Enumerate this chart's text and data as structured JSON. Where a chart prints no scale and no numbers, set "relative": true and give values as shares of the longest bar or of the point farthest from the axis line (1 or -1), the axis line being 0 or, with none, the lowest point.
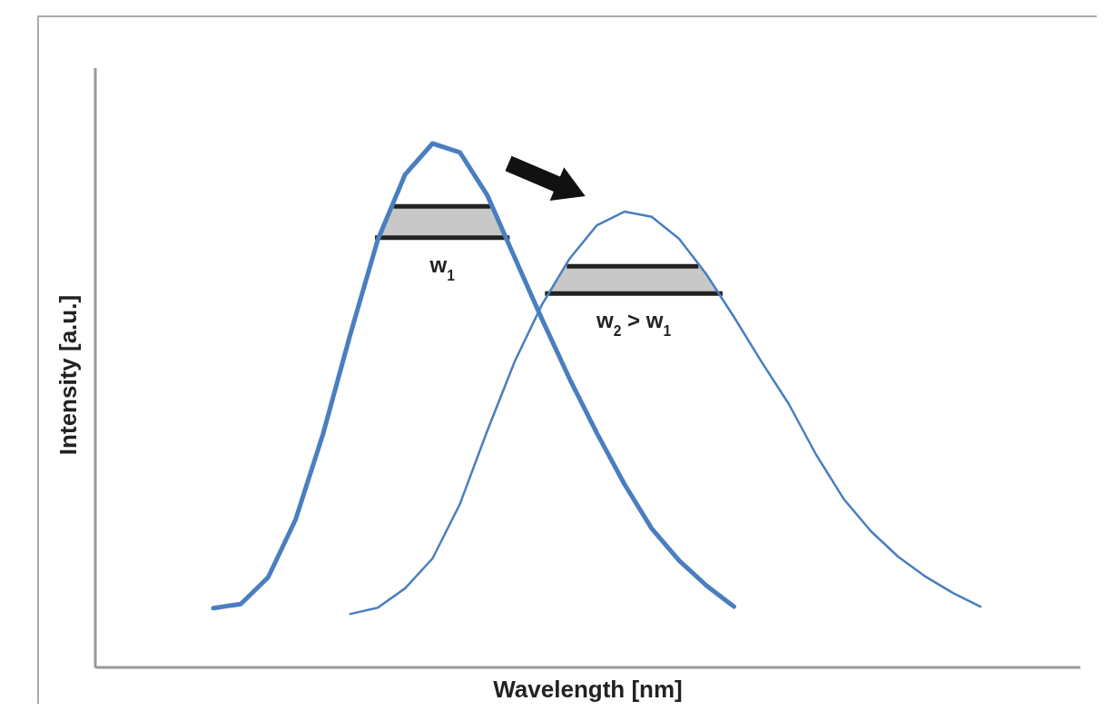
{
  "chart_data": {
    "type": "line",
    "relative": true,
    "xlabel": "Wavelength [nm]",
    "ylabel": "Intensity [a.u.]",
    "categories": [
      null,
      null,
      null,
      null,
      null,
      null,
      null,
      null,
      null,
      null,
      null,
      null,
      null,
      null,
      null,
      null,
      null,
      null,
      null,
      null,
      null,
      null,
      null,
      null,
      null,
      null,
      null,
      null,
      null
    ],
    "series": [
      {
        "color": "#4a7ebf",
        "values": [
          0.113,
          0.121,
          0.172,
          0.282,
          0.445,
          0.636,
          0.816,
          0.941,
          1,
          0.983,
          0.901,
          0.782,
          0.664,
          0.551,
          0.447,
          0.35,
          0.265,
          0.204,
          0.156,
          0.116,
          null,
          null,
          null,
          null,
          null,
          null,
          null,
          null,
          null
        ]
      },
      {
        "color": "#4a7ebf",
        "values": [
          null,
          null,
          null,
          null,
          null,
          0.102,
          0.114,
          0.151,
          0.208,
          0.312,
          0.452,
          0.584,
          0.693,
          0.78,
          0.844,
          0.87,
          0.86,
          0.818,
          0.75,
          0.669,
          0.584,
          0.503,
          0.406,
          0.322,
          0.26,
          0.211,
          0.173,
          0.142,
          0.116
        ]
      }
    ],
    "annotations": [
      "w$_{1}$",
      "w$_{2}$ > w$_{1}$"
    ]
  }
}
